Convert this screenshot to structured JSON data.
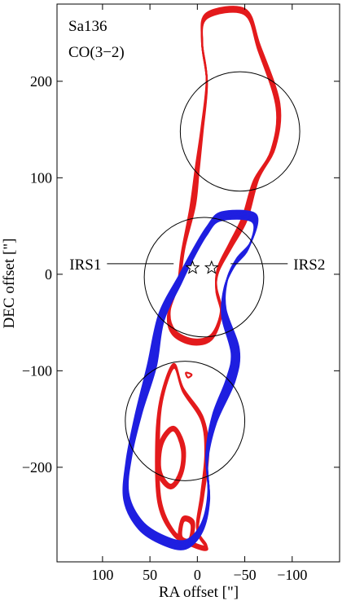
{
  "chart_data": {
    "type": "contour",
    "title_lines": [
      "Sa136",
      "CO(3−2)"
    ],
    "xlabel": "RA offset [\"]",
    "ylabel": "DEC offset [\"]",
    "xlim": [
      148,
      -150
    ],
    "ylim": [
      -298,
      280
    ],
    "x_ticks": [
      100,
      50,
      0,
      -50,
      -100
    ],
    "x_tick_labels": [
      "100",
      "50",
      "0",
      "−50",
      "−100"
    ],
    "y_ticks": [
      200,
      100,
      0,
      -100,
      -200
    ],
    "y_tick_labels": [
      "200",
      "100",
      "0",
      "−100",
      "−200"
    ],
    "colors": {
      "red": "#e31a1c",
      "blue": "#1f1fe0",
      "axes": "#000000"
    },
    "circles": [
      {
        "name": "field-north",
        "center": [
          -45,
          148
        ],
        "radius": 63
      },
      {
        "name": "field-center",
        "center": [
          -7,
          -3
        ],
        "radius": 63
      },
      {
        "name": "field-south",
        "center": [
          13,
          -152
        ],
        "radius": 63
      }
    ],
    "stars": [
      {
        "name": "IRS1",
        "label": "IRS1",
        "position": [
          5,
          5
        ],
        "label_position": [
          97,
          5
        ],
        "line_to": [
          25,
          5
        ]
      },
      {
        "name": "IRS2",
        "label": "IRS2",
        "position": [
          -15,
          5
        ],
        "label_position": [
          -97,
          5
        ],
        "line_to": [
          -35,
          5
        ]
      }
    ],
    "series": [
      {
        "color": "red",
        "levels": 6,
        "spread": 2.0,
        "paths": [
          [
            [
              -10,
              268
            ],
            [
              -50,
              272
            ],
            [
              -65,
              235
            ],
            [
              -85,
              175
            ],
            [
              -80,
              130
            ],
            [
              -62,
              98
            ],
            [
              -50,
              58
            ],
            [
              -35,
              30
            ],
            [
              -22,
              5
            ],
            [
              -20,
              -15
            ],
            [
              -25,
              -40
            ],
            [
              -15,
              -65
            ],
            [
              5,
              -70
            ],
            [
              25,
              -60
            ],
            [
              30,
              -40
            ],
            [
              20,
              -10
            ],
            [
              15,
              25
            ],
            [
              5,
              70
            ],
            [
              0,
              110
            ],
            [
              -5,
              150
            ],
            [
              -10,
              200
            ],
            [
              -5,
              240
            ],
            [
              -10,
              268
            ]
          ]
        ]
      },
      {
        "color": "red",
        "levels": 4,
        "spread": 2.5,
        "paths": [
          [
            [
              25,
              -95
            ],
            [
              15,
              -120
            ],
            [
              -5,
              -150
            ],
            [
              -10,
              -185
            ],
            [
              -5,
              -230
            ],
            [
              0,
              -265
            ],
            [
              -10,
              -283
            ],
            [
              5,
              -280
            ],
            [
              25,
              -268
            ],
            [
              40,
              -235
            ],
            [
              42,
              -175
            ],
            [
              38,
              -130
            ],
            [
              25,
              -95
            ]
          ],
          [
            [
              25,
              -160
            ],
            [
              15,
              -180
            ],
            [
              17,
              -205
            ],
            [
              28,
              -220
            ],
            [
              40,
              -205
            ],
            [
              38,
              -175
            ],
            [
              25,
              -160
            ]
          ],
          [
            [
              15,
              -254
            ],
            [
              5,
              -258
            ],
            [
              8,
              -276
            ],
            [
              18,
              -273
            ],
            [
              15,
              -254
            ]
          ]
        ]
      },
      {
        "color": "red",
        "levels": 1,
        "spread": 0,
        "paths": [
          [
            [
              12,
              -102
            ],
            [
              6,
              -104
            ],
            [
              10,
              -107
            ],
            [
              12,
              -102
            ]
          ]
        ]
      },
      {
        "color": "blue",
        "levels": 8,
        "spread": 2.3,
        "paths": [
          [
            [
              -25,
              60
            ],
            [
              -60,
              58
            ],
            [
              -55,
              30
            ],
            [
              -40,
              12
            ],
            [
              -30,
              -10
            ],
            [
              -28,
              -40
            ],
            [
              -40,
              -80
            ],
            [
              -35,
              -110
            ],
            [
              -18,
              -150
            ],
            [
              -10,
              -190
            ],
            [
              -12,
              -230
            ],
            [
              -5,
              -262
            ],
            [
              12,
              -280
            ],
            [
              35,
              -276
            ],
            [
              60,
              -260
            ],
            [
              75,
              -230
            ],
            [
              72,
              -190
            ],
            [
              62,
              -145
            ],
            [
              48,
              -95
            ],
            [
              38,
              -45
            ],
            [
              18,
              -5
            ],
            [
              5,
              20
            ],
            [
              -10,
              45
            ],
            [
              -25,
              60
            ]
          ]
        ]
      }
    ]
  }
}
